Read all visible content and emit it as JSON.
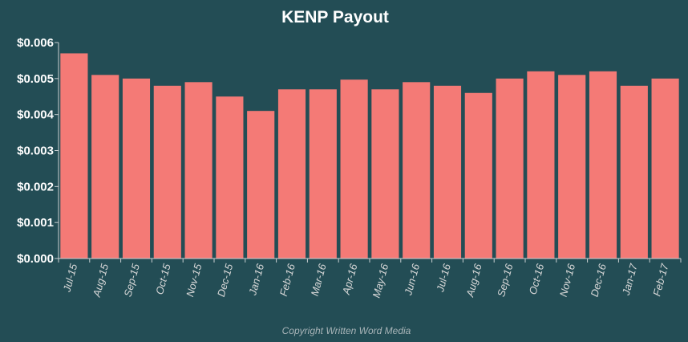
{
  "colors": {
    "background": "#234d55",
    "bar": "#f47a76",
    "text": "#ffffff",
    "axis": "#c8cfd1"
  },
  "footer": {
    "copyright": "Copyright Written Word Media"
  },
  "chart_data": {
    "type": "bar",
    "title": "KENP Payout",
    "xlabel": "",
    "ylabel": "",
    "categories": [
      "Jul-15",
      "Aug-15",
      "Sep-15",
      "Oct-15",
      "Nov-15",
      "Dec-15",
      "Jan-16",
      "Feb-16",
      "Mar-16",
      "Apr-16",
      "May-16",
      "Jun-16",
      "Jul-16",
      "Aug-16",
      "Sep-16",
      "Oct-16",
      "Nov-16",
      "Dec-16",
      "Jan-17",
      "Feb-17"
    ],
    "values": [
      0.0057,
      0.0051,
      0.005,
      0.0048,
      0.0049,
      0.0045,
      0.0041,
      0.0047,
      0.0047,
      0.00497,
      0.0047,
      0.0049,
      0.0048,
      0.0046,
      0.005,
      0.0052,
      0.0051,
      0.0052,
      0.0048,
      0.005
    ],
    "ylim": [
      0,
      0.006
    ],
    "yticks": [
      0,
      0.001,
      0.002,
      0.003,
      0.004,
      0.005,
      0.006
    ],
    "ytick_labels": [
      "$0.000",
      "$0.001",
      "$0.002",
      "$0.003",
      "$0.004",
      "$0.005",
      "$0.006"
    ],
    "grid": false,
    "legend": "none"
  }
}
